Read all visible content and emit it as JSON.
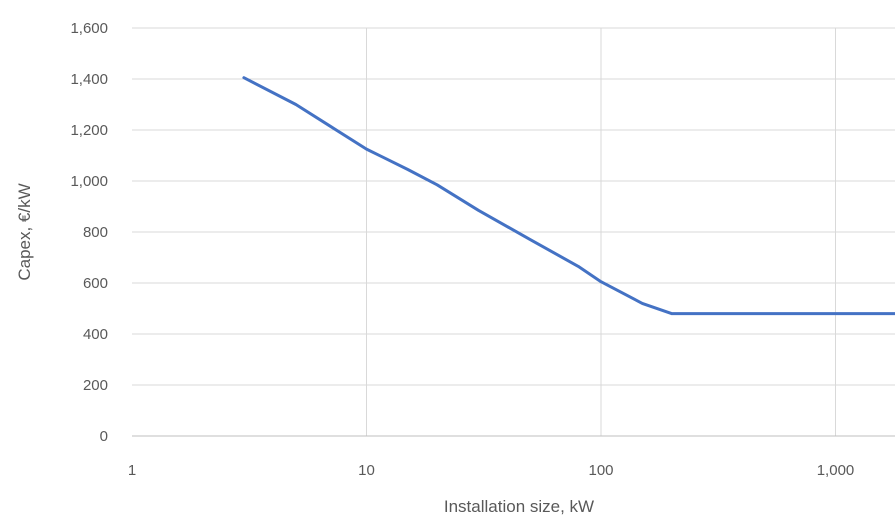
{
  "chart_data": {
    "type": "line",
    "title": "",
    "xlabel": "Installation size, kW",
    "ylabel": "Capex, €/kW",
    "x_scale": "log",
    "xlim": [
      1,
      2000
    ],
    "ylim": [
      0,
      1600
    ],
    "x_ticks": [
      1,
      10,
      100,
      1000
    ],
    "x_tick_labels": [
      "1",
      "10",
      "100",
      "1,000"
    ],
    "y_ticks": [
      0,
      200,
      400,
      600,
      800,
      1000,
      1200,
      1400,
      1600
    ],
    "y_tick_labels": [
      "0",
      "200",
      "400",
      "600",
      "800",
      "1,000",
      "1,200",
      "1,400",
      "1,600"
    ],
    "grid": true,
    "legend": "none",
    "series": [
      {
        "color": "#4472c4",
        "x": [
          3,
          5,
          7,
          10,
          15,
          20,
          30,
          50,
          80,
          100,
          150,
          200,
          500,
          1000,
          2000
        ],
        "y": [
          1405,
          1300,
          1215,
          1125,
          1045,
          985,
          885,
          770,
          665,
          605,
          520,
          480,
          480,
          480,
          480
        ]
      }
    ]
  }
}
